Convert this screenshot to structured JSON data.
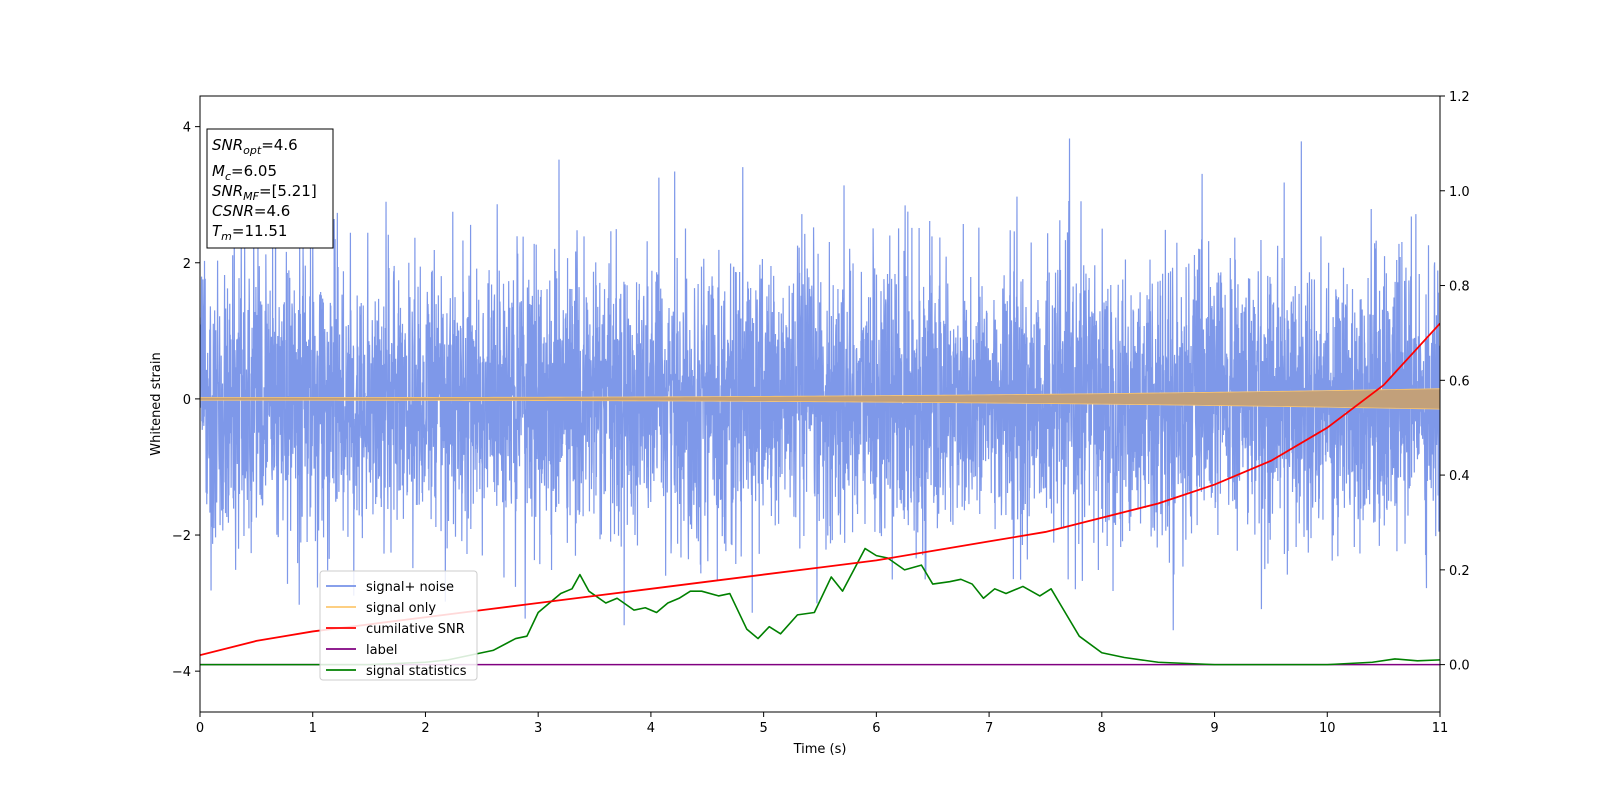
{
  "chart_data": {
    "type": "line",
    "xlabel": "Time (s)",
    "ylabel": "Whitened strain",
    "xlim": [
      0,
      11
    ],
    "ylim": [
      -4.6,
      4.45
    ],
    "y2lim": [
      -0.1,
      1.2
    ],
    "xticks": [
      "0",
      "1",
      "2",
      "3",
      "4",
      "5",
      "6",
      "7",
      "8",
      "9",
      "10",
      "11"
    ],
    "yticks": [
      "−4",
      "−2",
      "0",
      "2",
      "4"
    ],
    "y2ticks": [
      "0.0",
      "0.2",
      "0.4",
      "0.6",
      "0.8",
      "1.0",
      "1.2"
    ],
    "legend_position": "lower-left",
    "annotation": [
      {
        "var": "SNR",
        "sub": "opt",
        "value": "=4.6"
      },
      {
        "var": "M",
        "sub": "c",
        "value": "=6.05"
      },
      {
        "var": "SNR",
        "sub": "MF",
        "value": "=[5.21]"
      },
      {
        "var": "CSNR",
        "sub": "",
        "value": "=4.6"
      },
      {
        "var": "T",
        "sub": "m",
        "value": "=11.51"
      }
    ],
    "series": [
      {
        "name": "signal+ noise",
        "color": "#7792e8",
        "axis": "left",
        "noise_sigma": 1.0
      },
      {
        "name": "signal only",
        "color": "#fdc870",
        "axis": "left",
        "amplitude_start": 0.02,
        "amplitude_end": 0.15
      },
      {
        "name": "cumilative SNR",
        "color": "#ff0000",
        "axis": "right",
        "x": [
          0,
          0.5,
          1,
          1.5,
          2,
          2.5,
          3,
          3.5,
          4,
          4.5,
          5,
          5.5,
          6,
          6.5,
          7,
          7.5,
          8,
          8.5,
          9,
          9.5,
          10,
          10.5,
          11
        ],
        "y": [
          0.02,
          0.05,
          0.07,
          0.085,
          0.1,
          0.115,
          0.13,
          0.145,
          0.16,
          0.175,
          0.19,
          0.205,
          0.22,
          0.24,
          0.26,
          0.28,
          0.31,
          0.34,
          0.38,
          0.43,
          0.5,
          0.59,
          0.72
        ]
      },
      {
        "name": "label",
        "color": "#800080",
        "axis": "right",
        "x": [
          0,
          11
        ],
        "y": [
          0,
          0
        ]
      },
      {
        "name": "signal statistics",
        "color": "#008000",
        "axis": "right",
        "x": [
          0,
          0.5,
          1,
          1.5,
          2,
          2.2,
          2.4,
          2.6,
          2.8,
          2.9,
          3.0,
          3.1,
          3.2,
          3.3,
          3.37,
          3.45,
          3.6,
          3.7,
          3.85,
          3.95,
          4.05,
          4.15,
          4.25,
          4.35,
          4.45,
          4.6,
          4.7,
          4.85,
          4.95,
          5.05,
          5.15,
          5.3,
          5.45,
          5.6,
          5.7,
          5.8,
          5.9,
          6.0,
          6.1,
          6.25,
          6.4,
          6.5,
          6.65,
          6.75,
          6.85,
          6.95,
          7.05,
          7.15,
          7.3,
          7.45,
          7.55,
          7.65,
          7.8,
          8.0,
          8.2,
          8.5,
          9.0,
          9.5,
          10.0,
          10.4,
          10.6,
          10.8,
          11.0
        ],
        "y": [
          0,
          0,
          0,
          0,
          0.005,
          0.01,
          0.02,
          0.03,
          0.055,
          0.06,
          0.11,
          0.13,
          0.15,
          0.16,
          0.19,
          0.155,
          0.13,
          0.14,
          0.115,
          0.12,
          0.11,
          0.13,
          0.14,
          0.155,
          0.155,
          0.145,
          0.15,
          0.075,
          0.055,
          0.08,
          0.065,
          0.105,
          0.11,
          0.185,
          0.155,
          0.2,
          0.245,
          0.23,
          0.225,
          0.2,
          0.21,
          0.17,
          0.175,
          0.18,
          0.17,
          0.14,
          0.16,
          0.15,
          0.165,
          0.145,
          0.16,
          0.12,
          0.06,
          0.025,
          0.015,
          0.005,
          0,
          0,
          0,
          0.005,
          0.012,
          0.008,
          0.01
        ]
      }
    ]
  }
}
